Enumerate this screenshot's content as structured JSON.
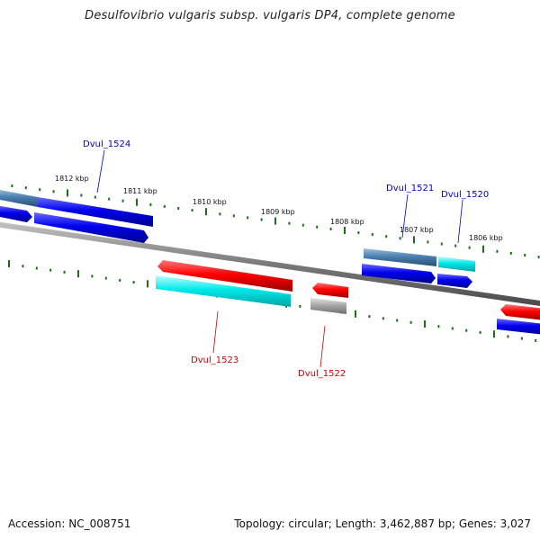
{
  "title": "Desulfovibrio vulgaris subsp. vulgaris DP4, complete genome",
  "footer": {
    "accession": "Accession: NC_008751",
    "summary": "Topology: circular; Length: 3,462,887 bp; Genes: 3,027"
  },
  "colors": {
    "forward_cds": "#0000ee",
    "reverse_cds": "#ff0000",
    "forward_gene": "#4a7fb0",
    "reverse_gene": "#00e5e5",
    "other": "#a8a8a8",
    "backbone": "#7a7a7a",
    "ticks": "#1e6b1e",
    "forward_label": "#0000cc",
    "reverse_label": "#cc0000"
  },
  "scale_labels": [
    "1812 kbp",
    "1811 kbp",
    "1810 kbp",
    "1809 kbp",
    "1808 kbp",
    "1807 kbp",
    "1806 kbp"
  ],
  "gene_labels": {
    "forward": [
      "Dvul_1524",
      "Dvul_1521",
      "Dvul_1520"
    ],
    "reverse": [
      "Dvul_1523",
      "Dvul_1522"
    ]
  }
}
